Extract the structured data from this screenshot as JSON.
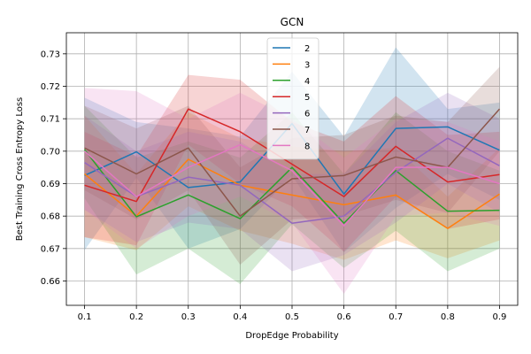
{
  "chart_data": {
    "type": "line",
    "title": "GCN",
    "xlabel": "DropEdge Probability",
    "ylabel": "Best Training Cross Entropy Loss",
    "x": [
      0.1,
      0.2,
      0.3,
      0.4,
      0.5,
      0.6,
      0.7,
      0.8,
      0.9
    ],
    "x_ticks": [
      "0.1",
      "0.2",
      "0.3",
      "0.4",
      "0.5",
      "0.6",
      "0.7",
      "0.8",
      "0.9"
    ],
    "xlim": [
      0.065,
      0.935
    ],
    "ylim": [
      0.6525,
      0.7365
    ],
    "y_ticks": [
      "0.66",
      "0.67",
      "0.68",
      "0.69",
      "0.70",
      "0.71",
      "0.72",
      "0.73"
    ],
    "y_tick_values": [
      0.66,
      0.67,
      0.68,
      0.69,
      0.7,
      0.71,
      0.72,
      0.73
    ],
    "grid": true,
    "legend_position": "top-center",
    "series": [
      {
        "name": "2",
        "color": "#1f77b4",
        "values": [
          0.6925,
          0.6998,
          0.6888,
          0.6905,
          0.7085,
          0.6868,
          0.707,
          0.7075,
          0.7003
        ],
        "lower": [
          0.6695,
          0.6918,
          0.67,
          0.676,
          0.6925,
          0.6688,
          0.6825,
          0.693,
          0.685
        ],
        "upper": [
          0.7165,
          0.709,
          0.707,
          0.7045,
          0.7245,
          0.7045,
          0.732,
          0.713,
          0.715
        ]
      },
      {
        "name": "3",
        "color": "#ff7f0e",
        "values": [
          0.693,
          0.68,
          0.6975,
          0.6895,
          0.6865,
          0.6835,
          0.6865,
          0.6762,
          0.6868
        ],
        "lower": [
          0.6735,
          0.6695,
          0.683,
          0.6755,
          0.6715,
          0.6665,
          0.6725,
          0.667,
          0.6725
        ],
        "upper": [
          0.711,
          0.693,
          0.712,
          0.704,
          0.7015,
          0.7,
          0.701,
          0.686,
          0.701
        ]
      },
      {
        "name": "4",
        "color": "#2ca02c",
        "values": [
          0.7005,
          0.6798,
          0.6865,
          0.6792,
          0.695,
          0.6778,
          0.694,
          0.6815,
          0.6818
        ],
        "lower": [
          0.6855,
          0.662,
          0.67,
          0.659,
          0.6775,
          0.664,
          0.6755,
          0.663,
          0.67
        ],
        "upper": [
          0.714,
          0.698,
          0.703,
          0.698,
          0.712,
          0.693,
          0.712,
          0.7,
          0.694
        ]
      },
      {
        "name": "5",
        "color": "#d62728",
        "values": [
          0.6895,
          0.6845,
          0.713,
          0.706,
          0.696,
          0.686,
          0.7015,
          0.6905,
          0.6928
        ],
        "lower": [
          0.6735,
          0.671,
          0.702,
          0.69,
          0.683,
          0.669,
          0.686,
          0.676,
          0.679
        ],
        "upper": [
          0.706,
          0.6985,
          0.7235,
          0.722,
          0.709,
          0.703,
          0.717,
          0.705,
          0.706
        ]
      },
      {
        "name": "6",
        "color": "#9467bd",
        "values": [
          0.6965,
          0.686,
          0.692,
          0.6895,
          0.6778,
          0.68,
          0.6935,
          0.704,
          0.6955
        ],
        "lower": [
          0.682,
          0.672,
          0.678,
          0.676,
          0.663,
          0.668,
          0.678,
          0.69,
          0.681
        ],
        "upper": [
          0.711,
          0.7,
          0.706,
          0.703,
          0.693,
          0.693,
          0.709,
          0.718,
          0.71
        ]
      },
      {
        "name": "7",
        "color": "#8c564b",
        "values": [
          0.701,
          0.693,
          0.701,
          0.68,
          0.6915,
          0.6925,
          0.6982,
          0.695,
          0.713
        ],
        "lower": [
          0.688,
          0.679,
          0.688,
          0.665,
          0.679,
          0.68,
          0.685,
          0.681,
          0.7
        ],
        "upper": [
          0.714,
          0.707,
          0.714,
          0.695,
          0.704,
          0.705,
          0.711,
          0.709,
          0.726
        ]
      },
      {
        "name": "8",
        "color": "#e377c2",
        "values": [
          0.7,
          0.686,
          0.695,
          0.702,
          0.694,
          0.677,
          0.695,
          0.695,
          0.69
        ],
        "lower": [
          0.682,
          0.67,
          0.68,
          0.686,
          0.678,
          0.656,
          0.68,
          0.681,
          0.677
        ],
        "upper": [
          0.7195,
          0.7185,
          0.71,
          0.718,
          0.71,
          0.698,
          0.71,
          0.709,
          0.703
        ]
      }
    ]
  }
}
